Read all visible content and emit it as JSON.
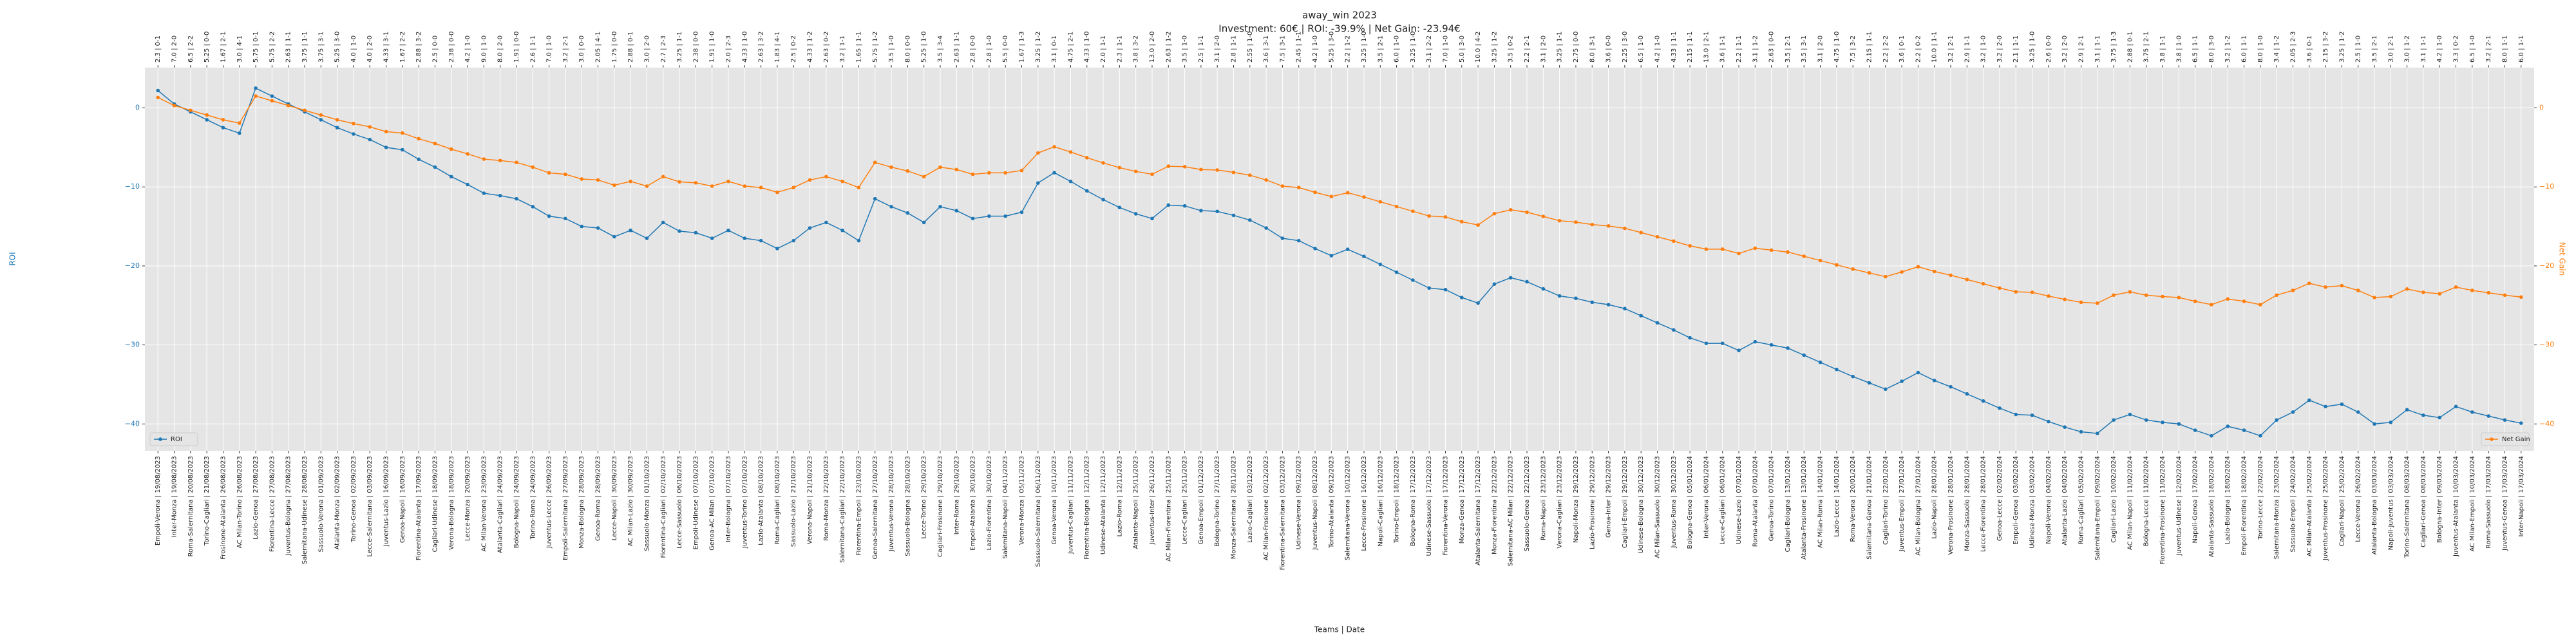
{
  "chart_data": {
    "type": "line",
    "title": "away_win 2023",
    "subtitle": "Investment: 60€ | ROI: -39.9% | Net Gain: -23.94€",
    "xlabel": "Teams | Date",
    "ylabel": "ROI",
    "y2label": "Net Gain",
    "grid": true,
    "ylim": [
      -43.4,
      5.1
    ],
    "y2lim": [
      -43.4,
      5.1
    ],
    "yticks": [
      0,
      {
        "value": -10,
        "label": "−10"
      },
      {
        "value": -20,
        "label": "−20"
      },
      {
        "value": -30,
        "label": "−30"
      },
      {
        "value": -40,
        "label": "−40"
      }
    ],
    "y2ticks": [
      0,
      {
        "value": -10,
        "label": "−10"
      },
      {
        "value": -20,
        "label": "−20"
      },
      {
        "value": -30,
        "label": "−30"
      },
      {
        "value": -40,
        "label": "−40"
      }
    ],
    "categories": [
      "Empoli-Verona | 19/08/2023",
      "Inter-Monza | 19/08/2023",
      "Roma-Salernitana | 20/08/2023",
      "Torino-Cagliari | 21/08/2023",
      "Frosinone-Atalanta | 26/08/2023",
      "AC Milan-Torino | 26/08/2023",
      "Lazio-Genoa | 27/08/2023",
      "Fiorentina-Lecce | 27/08/2023",
      "Juventus-Bologna | 27/08/2023",
      "Salernitana-Udinese | 28/08/2023",
      "Sassuolo-Verona | 01/09/2023",
      "Atalanta-Monza | 02/09/2023",
      "Torino-Genoa | 02/09/2023",
      "Lecce-Salernitana | 03/09/2023",
      "Juventus-Lazio | 16/09/2023",
      "Genoa-Napoli | 16/09/2023",
      "Fiorentina-Atalanta | 17/09/2023",
      "Cagliari-Udinese | 18/09/2023",
      "Verona-Bologna | 18/09/2023",
      "Lecce-Monza | 20/09/2023",
      "AC Milan-Verona | 23/09/2023",
      "Atalanta-Cagliari | 24/09/2023",
      "Bologna-Napoli | 24/09/2023",
      "Torino-Roma | 24/09/2023",
      "Juventus-Lecce | 26/09/2023",
      "Empoli-Salernitana | 27/09/2023",
      "Monza-Bologna | 28/09/2023",
      "Genoa-Roma | 28/09/2023",
      "Lecce-Napoli | 30/09/2023",
      "AC Milan-Lazio | 30/09/2023",
      "Sassuolo-Monza | 01/10/2023",
      "Fiorentina-Cagliari | 02/10/2023",
      "Lecce-Sassuolo | 06/10/2023",
      "Empoli-Udinese | 07/10/2023",
      "Genoa-AC Milan | 07/10/2023",
      "Inter-Bologna | 07/10/2023",
      "Juventus-Torino | 07/10/2023",
      "Lazio-Atalanta | 08/10/2023",
      "Roma-Cagliari | 08/10/2023",
      "Sassuolo-Lazio | 21/10/2023",
      "Verona-Napoli | 21/10/2023",
      "Roma-Monza | 22/10/2023",
      "Salernitana-Cagliari | 22/10/2023",
      "Fiorentina-Empoli | 23/10/2023",
      "Genoa-Salernitana | 27/10/2023",
      "Juventus-Verona | 28/10/2023",
      "Sassuolo-Bologna | 28/10/2023",
      "Lecce-Torino | 29/10/2023",
      "Cagliari-Frosinone | 29/10/2023",
      "Inter-Roma | 29/10/2023",
      "Empoli-Atalanta | 30/10/2023",
      "Lazio-Fiorentina | 30/10/2023",
      "Salernitana-Napoli | 04/11/2023",
      "Verona-Monza | 05/11/2023",
      "Sassuolo-Salernitana | 06/11/2023",
      "Genoa-Verona | 10/11/2023",
      "Juventus-Cagliari | 11/11/2023",
      "Fiorentina-Bologna | 12/11/2023",
      "Udinese-Atalanta | 12/11/2023",
      "Lazio-Roma | 12/11/2023",
      "Atalanta-Napoli | 25/11/2023",
      "Juventus-Inter | 26/11/2023",
      "AC Milan-Fiorentina | 25/11/2023",
      "Lecce-Cagliari | 25/11/2023",
      "Genoa-Empoli | 01/12/2023",
      "Bologna-Torino | 27/11/2023",
      "Monza-Salernitana | 28/11/2023",
      "Lazio-Cagliari | 03/12/2023",
      "AC Milan-Frosinone | 02/12/2023",
      "Fiorentina-Salernitana | 03/12/2023",
      "Udinese-Verona | 09/12/2023",
      "Juventus-Napoli | 08/12/2023",
      "Torino-Atalanta | 09/12/2023",
      "Salernitana-Verona | 10/12/2023",
      "Lecce-Frosinone | 16/12/2023",
      "Napoli-Cagliari | 16/12/2023",
      "Torino-Empoli | 18/12/2023",
      "Bologna-Roma | 17/12/2023",
      "Udinese-Sassuolo | 17/12/2023",
      "Fiorentina-Verona | 17/12/2023",
      "Monza-Genoa | 17/12/2023",
      "Atalanta-Salernitana | 17/12/2023",
      "Monza-Fiorentina | 22/12/2023",
      "Salernitana-AC Milan | 22/12/2023",
      "Sassuolo-Genoa | 22/12/2023",
      "Roma-Napoli | 23/12/2023",
      "Verona-Cagliari | 23/12/2023",
      "Napoli-Monza | 29/12/2023",
      "Lazio-Frosinone | 29/12/2023",
      "Genoa-Inter | 29/12/2023",
      "Cagliari-Empoli | 29/12/2023",
      "Udinese-Bologna | 30/12/2023",
      "AC Milan-Sassuolo | 30/12/2023",
      "Juventus-Roma | 30/12/2023",
      "Bologna-Genoa | 05/01/2024",
      "Inter-Verona | 06/01/2024",
      "Lecce-Cagliari | 06/01/2024",
      "Udinese-Lazio | 07/01/2024",
      "Roma-Atalanta | 07/01/2024",
      "Genoa-Torino | 07/01/2024",
      "Cagliari-Bologna | 13/01/2024",
      "Atalanta-Frosinone | 13/01/2024",
      "AC Milan-Roma | 14/01/2024",
      "Lazio-Lecce | 14/01/2024",
      "Roma-Verona | 20/01/2024",
      "Salernitana-Genoa | 21/01/2024",
      "Cagliari-Torino | 22/01/2024",
      "Juventus-Empoli | 27/01/2024",
      "AC Milan-Bologna | 27/01/2024",
      "Lazio-Napoli | 28/01/2024",
      "Verona-Frosinone | 28/01/2024",
      "Monza-Sassuolo | 28/01/2024",
      "Lecce-Fiorentina | 28/01/2024",
      "Genoa-Lecce | 02/02/2024",
      "Empoli-Genoa | 03/02/2024",
      "Udinese-Monza | 03/02/2024",
      "Napoli-Verona | 04/02/2024",
      "Atalanta-Lazio | 04/02/2024",
      "Roma-Cagliari | 05/02/2024",
      "Salernitana-Empoli | 09/02/2024",
      "Cagliari-Lazio | 10/02/2024",
      "AC Milan-Napoli | 11/02/2024",
      "Bologna-Lecce | 11/02/2024",
      "Fiorentina-Frosinone | 11/02/2024",
      "Juventus-Udinese | 12/02/2024",
      "Napoli-Genoa | 17/02/2024",
      "Atalanta-Sassuolo | 18/02/2024",
      "Lazio-Bologna | 18/02/2024",
      "Empoli-Fiorentina | 18/02/2024",
      "Torino-Lecce | 22/02/2024",
      "Salernitana-Monza | 23/02/2024",
      "Sassuolo-Empoli | 24/02/2024",
      "AC Milan-Atalanta | 25/02/2024",
      "Juventus-Frosinone | 25/02/2024",
      "Cagliari-Napoli | 25/02/2024",
      "Lecce-Verona | 26/02/2024",
      "Atalanta-Bologna | 03/03/2024",
      "Napoli-Juventus | 03/03/2024",
      "Torino-Salernitana | 08/03/2024",
      "Cagliari-Genoa | 08/03/2024",
      "Bologna-Inter | 09/03/2024",
      "Juventus-Atalanta | 10/03/2024",
      "AC Milan-Empoli | 10/03/2024",
      "Roma-Sassuolo | 17/03/2024",
      "Juventus-Genoa | 17/03/2024",
      "Inter-Napoli | 17/03/2024"
    ],
    "match_labels": [
      "2.3 | 0-1",
      "7.0 | 2-0",
      "6.5 | 2-2",
      "5.25 | 0-0",
      "1.67 | 2-1",
      "3.0 | 4-1",
      "5.75 | 0-1",
      "5.75 | 2-2",
      "2.63 | 1-1",
      "3.75 | 1-1",
      "3.75 | 3-1",
      "5.25 | 3-0",
      "4.0 | 1-0",
      "4.0 | 2-0",
      "4.33 | 3-1",
      "1.67 | 2-2",
      "2.88 | 3-2",
      "2.5 | 0-0",
      "2.38 | 0-0",
      "4.2 | 1-0",
      "9.0 | 1-0",
      "8.0 | 2-0",
      "1.91 | 0-0",
      "2.6 | 1-1",
      "7.0 | 1-0",
      "3.2 | 2-1",
      "3.0 | 0-0",
      "2.05 | 4-1",
      "1.75 | 0-0",
      "2.88 | 0-1",
      "3.0 | 2-0",
      "2.7 | 2-3",
      "3.25 | 1-1",
      "2.38 | 0-0",
      "1.91 | 1-0",
      "2.0 | 2-3",
      "4.33 | 1-0",
      "2.63 | 3-2",
      "1.83 | 4-1",
      "2.5 | 0-2",
      "4.33 | 1-2",
      "2.63 | 0-2",
      "3.2 | 1-1",
      "1.65 | 1-1",
      "5.75 | 1-2",
      "3.5 | 1-0",
      "8.0 | 0-0",
      "5.25 | 1-0",
      "3.5 | 3-4",
      "2.63 | 1-1",
      "2.8 | 0-0",
      "2.8 | 1-0",
      "5.5 | 0-0",
      "1.67 | 1-3",
      "3.25 | 1-2",
      "3.1 | 0-1",
      "4.75 | 2-1",
      "4.33 | 1-0",
      "2.0 | 1-1",
      "2.3 | 1-1",
      "3.8 | 3-2",
      "13.0 | 2-0",
      "2.63 | 1-2",
      "3.5 | 1-0",
      "2.5 | 1-1",
      "3.1 | 2-0",
      "2.8 | 1-1",
      "2.55 | 1-0",
      "3.6 | 3-1",
      "7.5 | 3-1",
      "2.45 | 1-1",
      "4.2 | 1-0",
      "5.25 | 3-0",
      "2.2 | 1-2",
      "3.25 | 1-0",
      "3.5 | 2-1",
      "6.0 | 1-0",
      "3.25 | 1-0",
      "3.1 | 2-2",
      "7.0 | 1-0",
      "5.0 | 3-0",
      "10.0 | 4-2",
      "3.25 | 1-2",
      "3.5 | 0-2",
      "2.2 | 2-1",
      "3.1 | 2-0",
      "3.25 | 1-1",
      "2.75 | 0-0",
      "8.0 | 3-1",
      "3.6 | 0-0",
      "2.25 | 3-0",
      "6.5 | 1-0",
      "4.2 | 1-0",
      "4.33 | 1-1",
      "2.15 | 1-1",
      "13.0 | 2-1",
      "3.6 | 1-1",
      "2.2 | 1-1",
      "3.1 | 1-2",
      "2.63 | 0-0",
      "3.5 | 2-1",
      "3.5 | 3-1",
      "3.1 | 2-0",
      "4.75 | 1-0",
      "7.5 | 3-2",
      "2.15 | 1-1",
      "2.2 | 2-2",
      "3.6 | 0-1",
      "2.2 | 0-2",
      "10.0 | 1-1",
      "3.2 | 2-1",
      "2.9 | 1-1",
      "3.2 | 1-0",
      "3.2 | 2-0",
      "2.1 | 1-1",
      "3.25 | 1-0",
      "2.6 | 0-0",
      "3.2 | 2-0",
      "2.9 | 2-1",
      "3.1 | 1-1",
      "3.75 | 1-3",
      "2.88 | 0-1",
      "3.75 | 2-1",
      "3.8 | 1-1",
      "3.8 | 1-0",
      "6.5 | 1-1",
      "8.0 | 3-0",
      "3.2 | 1-2",
      "6.0 | 1-1",
      "8.0 | 1-0",
      "3.4 | 1-2",
      "2.05 | 2-3",
      "3.6 | 0-1",
      "2.15 | 3-2",
      "3.25 | 1-2",
      "2.5 | 1-0",
      "3.5 | 2-1",
      "3.0 | 2-1",
      "3.0 | 1-2",
      "3.1 | 1-1",
      "4.2 | 1-0",
      "3.3 | 0-2",
      "6.5 | 1-0",
      "3.2 | 2-1",
      "8.0 | 1-1",
      "6.0 | 1-1"
    ],
    "series": [
      {
        "name": "ROI",
        "color": "#1f77b4",
        "axis": "y",
        "legend": "lower left",
        "values": [
          2.2,
          0.5,
          -0.5,
          -1.5,
          -2.5,
          -3.2,
          2.5,
          1.5,
          0.5,
          -0.5,
          -1.5,
          -2.5,
          -3.3,
          -4,
          -5,
          -5.3,
          -6.5,
          -7.5,
          -8.7,
          -9.7,
          -10.8,
          -11.1,
          -11.5,
          -12.5,
          -13.7,
          -14,
          -15,
          -15.2,
          -16.3,
          -15.5,
          -16.5,
          -14.5,
          -15.6,
          -15.8,
          -16.5,
          -15.5,
          -16.5,
          -16.8,
          -17.8,
          -16.8,
          -15.2,
          -14.5,
          -15.5,
          -16.8,
          -11.5,
          -12.5,
          -13.3,
          -14.5,
          -12.5,
          -13,
          -14,
          -13.7,
          -13.7,
          -13.2,
          -9.5,
          -8.2,
          -9.3,
          -10.5,
          -11.6,
          -12.6,
          -13.4,
          -14,
          -12.3,
          -12.4,
          -13,
          -13.1,
          -13.6,
          -14.2,
          -15.2,
          -16.5,
          -16.8,
          -17.8,
          -18.7,
          -17.9,
          -18.8,
          -19.8,
          -20.8,
          -21.8,
          -22.8,
          -23,
          -24,
          -24.7,
          -22.3,
          -21.5,
          -22,
          -22.9,
          -23.8,
          -24.1,
          -24.6,
          -24.9,
          -25.4,
          -26.3,
          -27.2,
          -28.1,
          -29.1,
          -29.8,
          -29.8,
          -30.7,
          -29.6,
          -30,
          -30.4,
          -31.3,
          -32.2,
          -33.1,
          -34,
          -34.8,
          -35.6,
          -34.6,
          -33.5,
          -34.5,
          -35.3,
          -36.2,
          -37.1,
          -38,
          -38.8,
          -38.9,
          -39.7,
          -40.4,
          -41,
          -41.2,
          -39.5,
          -38.8,
          -39.5,
          -39.8,
          -40,
          -40.8,
          -41.5,
          -40.3,
          -40.8,
          -41.5,
          -39.5,
          -38.5,
          -37,
          -37.8,
          -37.5,
          -38.5,
          -40,
          -39.8,
          -38.2,
          -38.9,
          -39.2,
          -37.8,
          -38.5,
          -39,
          -39.5,
          -39.9
        ]
      },
      {
        "name": "Net Gain",
        "color": "#ff7f0e",
        "axis": "y2",
        "legend": "lower right",
        "values": [
          1.32,
          0.3,
          -0.3,
          -0.9,
          -1.5,
          -1.92,
          1.5,
          0.9,
          0.3,
          -0.3,
          -0.9,
          -1.5,
          -1.98,
          -2.4,
          -3,
          -3.18,
          -3.9,
          -4.5,
          -5.22,
          -5.82,
          -6.48,
          -6.66,
          -6.9,
          -7.5,
          -8.22,
          -8.4,
          -9,
          -9.12,
          -9.78,
          -9.3,
          -9.9,
          -8.7,
          -9.36,
          -9.48,
          -9.9,
          -9.3,
          -9.9,
          -10.08,
          -10.68,
          -10.08,
          -9.12,
          -8.7,
          -9.3,
          -10.08,
          -6.9,
          -7.5,
          -7.98,
          -8.7,
          -7.5,
          -7.8,
          -8.4,
          -8.22,
          -8.22,
          -7.92,
          -5.7,
          -4.92,
          -5.58,
          -6.3,
          -6.96,
          -7.56,
          -8.04,
          -8.4,
          -7.38,
          -7.44,
          -7.8,
          -7.86,
          -8.16,
          -8.52,
          -9.12,
          -9.9,
          -10.08,
          -10.68,
          -11.22,
          -10.74,
          -11.28,
          -11.88,
          -12.48,
          -13.08,
          -13.68,
          -13.8,
          -14.4,
          -14.82,
          -13.38,
          -12.9,
          -13.2,
          -13.74,
          -14.28,
          -14.46,
          -14.76,
          -14.94,
          -15.24,
          -15.78,
          -16.32,
          -16.86,
          -17.46,
          -17.88,
          -17.88,
          -18.42,
          -17.76,
          -18,
          -18.24,
          -18.78,
          -19.32,
          -19.86,
          -20.4,
          -20.88,
          -21.36,
          -20.76,
          -20.1,
          -20.7,
          -21.18,
          -21.72,
          -22.26,
          -22.8,
          -23.28,
          -23.34,
          -23.82,
          -24.24,
          -24.6,
          -24.72,
          -23.7,
          -23.28,
          -23.7,
          -23.88,
          -24,
          -24.48,
          -24.9,
          -24.18,
          -24.48,
          -24.9,
          -23.7,
          -23.1,
          -22.2,
          -22.68,
          -22.5,
          -23.1,
          -24,
          -23.88,
          -22.92,
          -23.34,
          -23.52,
          -22.68,
          -23.1,
          -23.4,
          -23.7,
          -23.94
        ]
      }
    ]
  }
}
